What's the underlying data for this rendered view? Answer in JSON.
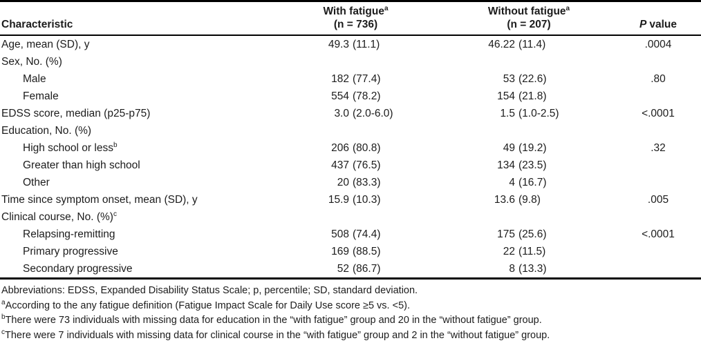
{
  "colors": {
    "text": "#1c1c1c",
    "rule": "#000000",
    "background": "#ffffff"
  },
  "table": {
    "header": {
      "characteristic": "Characteristic",
      "col2_line1": "With fatigue",
      "col2_sup": "a",
      "col2_line2": "(n = 736)",
      "col3_line1": "Without fatigue",
      "col3_sup": "a",
      "col3_line2": "(n = 207)",
      "p_italic": "P",
      "p_rest": "value"
    },
    "rows": [
      {
        "label": "Age, mean (SD), y",
        "sup": "",
        "v1num": "49.3",
        "v1paren": "(11.1)",
        "v2num": "46.22",
        "v2paren": "(11.4)",
        "p": ".0004"
      },
      {
        "label": "Sex, No. (%)",
        "sup": "",
        "v1num": "",
        "v1paren": "",
        "v2num": "",
        "v2paren": "",
        "p": ""
      },
      {
        "label": "Male",
        "sup": "",
        "v1num": "182",
        "v1paren": "(77.4)",
        "v2num": "53",
        "v2paren": "(22.6)",
        "p": ".80"
      },
      {
        "label": "Female",
        "sup": "",
        "v1num": "554",
        "v1paren": "(78.2)",
        "v2num": "154",
        "v2paren": "(21.8)",
        "p": ""
      },
      {
        "label": "EDSS score, median (p25-p75)",
        "sup": "",
        "v1num": "3.0",
        "v1paren": "(2.0-6.0)",
        "v2num": "1.5",
        "v2paren": "(1.0-2.5)",
        "p": "<.0001"
      },
      {
        "label": "Education, No. (%)",
        "sup": "",
        "v1num": "",
        "v1paren": "",
        "v2num": "",
        "v2paren": "",
        "p": ""
      },
      {
        "label": "High school or less",
        "sup": "b",
        "v1num": "206",
        "v1paren": "(80.8)",
        "v2num": "49",
        "v2paren": "(19.2)",
        "p": ".32"
      },
      {
        "label": "Greater than high school",
        "sup": "",
        "v1num": "437",
        "v1paren": "(76.5)",
        "v2num": "134",
        "v2paren": "(23.5)",
        "p": ""
      },
      {
        "label": "Other",
        "sup": "",
        "v1num": "20",
        "v1paren": "(83.3)",
        "v2num": "4",
        "v2paren": "(16.7)",
        "p": ""
      },
      {
        "label": "Time since symptom onset, mean (SD), y",
        "sup": "",
        "v1num": "15.9",
        "v1paren": "(10.3)",
        "v2num": "13.6",
        "v2paren": "(9.8)",
        "p": ".005"
      },
      {
        "label": "Clinical course, No. (%)",
        "sup": "c",
        "v1num": "",
        "v1paren": "",
        "v2num": "",
        "v2paren": "",
        "p": ""
      },
      {
        "label": "Relapsing-remitting",
        "sup": "",
        "v1num": "508",
        "v1paren": "(74.4)",
        "v2num": "175",
        "v2paren": "(25.6)",
        "p": "<.0001"
      },
      {
        "label": "Primary progressive",
        "sup": "",
        "v1num": "169",
        "v1paren": "(88.5)",
        "v2num": "22",
        "v2paren": "(11.5)",
        "p": ""
      },
      {
        "label": "Secondary progressive",
        "sup": "",
        "v1num": "52",
        "v1paren": "(86.7)",
        "v2num": "8",
        "v2paren": "(13.3)",
        "p": ""
      }
    ]
  },
  "footnotes": [
    {
      "sup": "",
      "text": "Abbreviations: EDSS, Expanded Disability Status Scale; p, percentile; SD, standard deviation."
    },
    {
      "sup": "a",
      "text": "According to the any fatigue definition (Fatigue Impact Scale for Daily Use score ≥5 vs. <5)."
    },
    {
      "sup": "b",
      "text": "There were 73 individuals with missing data for education in the “with fatigue” group and 20 in the “without fatigue” group."
    },
    {
      "sup": "c",
      "text": "There were 7 individuals with missing data for clinical course in the “with fatigue” group and 2 in the “without fatigue” group."
    }
  ]
}
